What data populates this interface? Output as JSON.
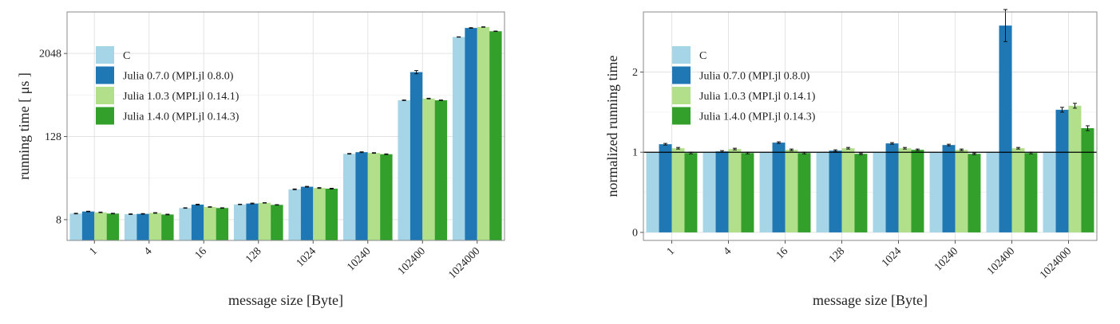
{
  "colors": {
    "C": "#a6d5e8",
    "Julia 0.7.0 (MPI.jl 0.8.0)": "#1f78b4",
    "Julia 1.0.3 (MPI.jl 0.14.1)": "#b2df8a",
    "Julia 1.4.0 (MPI.jl 0.14.3)": "#33a02c"
  },
  "chart_data": [
    {
      "type": "bar",
      "xlabel": "message size [Byte]",
      "ylabel": "running time [ μs ]",
      "yscale": "log2",
      "ylim": [
        4,
        8192
      ],
      "yticks": [
        8,
        128,
        2048
      ],
      "ytick_labels": [
        "8",
        "128",
        "2048"
      ],
      "grid": true,
      "legend_position": "top-left",
      "error_bars": true,
      "categories": [
        "1",
        "4",
        "16",
        "128",
        "1024",
        "10240",
        "102400",
        "1024000"
      ],
      "series": [
        {
          "name": "C",
          "values": [
            9.8,
            9.6,
            11.8,
            13.3,
            22,
            72,
            430,
            3550
          ],
          "errors": [
            0.1,
            0.1,
            0.1,
            0.1,
            0.3,
            0.8,
            4,
            20
          ]
        },
        {
          "name": "Julia 0.7.0 (MPI.jl 0.8.0)",
          "values": [
            10.5,
            9.7,
            13.2,
            13.7,
            24,
            76,
            1100,
            4800
          ],
          "errors": [
            0.1,
            0.1,
            0.2,
            0.2,
            0.3,
            1.0,
            60,
            50
          ]
        },
        {
          "name": "Julia 1.0.3 (MPI.jl 0.14.1)",
          "values": [
            10.2,
            10.0,
            12.2,
            14.0,
            23,
            74,
            455,
            4950
          ],
          "errors": [
            0.1,
            0.1,
            0.1,
            0.1,
            0.3,
            0.8,
            5,
            40
          ]
        },
        {
          "name": "Julia 1.4.0 (MPI.jl 0.14.3)",
          "values": [
            9.8,
            9.5,
            11.8,
            13.1,
            22.5,
            71,
            430,
            4300
          ],
          "errors": [
            0.1,
            0.1,
            0.1,
            0.1,
            0.3,
            0.8,
            4,
            30
          ]
        }
      ]
    },
    {
      "type": "bar",
      "xlabel": "message size [Byte]",
      "ylabel": "normalized running time",
      "ylim": [
        -0.1,
        2.75
      ],
      "yticks": [
        0,
        1,
        2
      ],
      "ytick_labels": [
        "0",
        "1",
        "2"
      ],
      "reference_line": 1,
      "grid": true,
      "legend_position": "top-left",
      "error_bars": true,
      "categories": [
        "1",
        "4",
        "16",
        "128",
        "1024",
        "10240",
        "102400",
        "1024000"
      ],
      "series": [
        {
          "name": "C",
          "values": [
            1.0,
            1.0,
            1.0,
            1.0,
            1.0,
            1.0,
            1.0,
            1.0
          ],
          "errors": [
            0,
            0,
            0,
            0,
            0,
            0,
            0,
            0
          ]
        },
        {
          "name": "Julia 0.7.0 (MPI.jl 0.8.0)",
          "values": [
            1.1,
            1.01,
            1.12,
            1.02,
            1.11,
            1.09,
            2.58,
            1.53
          ],
          "errors": [
            0.01,
            0.01,
            0.01,
            0.01,
            0.01,
            0.01,
            0.2,
            0.03
          ]
        },
        {
          "name": "Julia 1.0.3 (MPI.jl 0.14.1)",
          "values": [
            1.05,
            1.04,
            1.03,
            1.05,
            1.05,
            1.03,
            1.05,
            1.58
          ],
          "errors": [
            0.01,
            0.01,
            0.01,
            0.01,
            0.01,
            0.01,
            0.01,
            0.03
          ]
        },
        {
          "name": "Julia 1.4.0 (MPI.jl 0.14.3)",
          "values": [
            0.99,
            0.99,
            0.99,
            0.98,
            1.03,
            0.98,
            0.99,
            1.3
          ],
          "errors": [
            0.01,
            0.01,
            0.01,
            0.01,
            0.01,
            0.01,
            0.01,
            0.03
          ]
        }
      ]
    }
  ]
}
